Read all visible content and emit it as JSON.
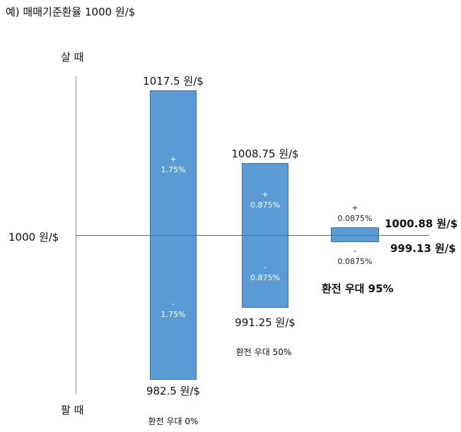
{
  "title": "예) 매매기준환율 1000 원/$",
  "labels": {
    "buy": "살 때",
    "sell": "팔 때",
    "base": "1000 원/$"
  },
  "colors": {
    "bar_fill": "#5b9bd5",
    "bar_border": "#41719c",
    "axis": "#5b9bd5"
  },
  "bars": [
    {
      "caption": "환전 우대 0%",
      "top_value": "1017.5 원/$",
      "bottom_value": "982.5 원/$",
      "plus_sign": "+",
      "plus_pct": "1.75%",
      "minus_sign": "-",
      "minus_pct": "1.75%"
    },
    {
      "caption": "환전 우대 50%",
      "top_value": "1008.75 원/$",
      "bottom_value": "991.25 원/$",
      "plus_sign": "+",
      "plus_pct": "0.875%",
      "minus_sign": "-",
      "minus_pct": "0.875%"
    },
    {
      "caption": "환전 우대 95%",
      "top_value": "1000.88 원/$",
      "bottom_value": "999.13 원/$",
      "plus_sign": "+",
      "plus_pct": "0.0875%",
      "minus_sign": "-",
      "minus_pct": "0.0875%"
    }
  ]
}
